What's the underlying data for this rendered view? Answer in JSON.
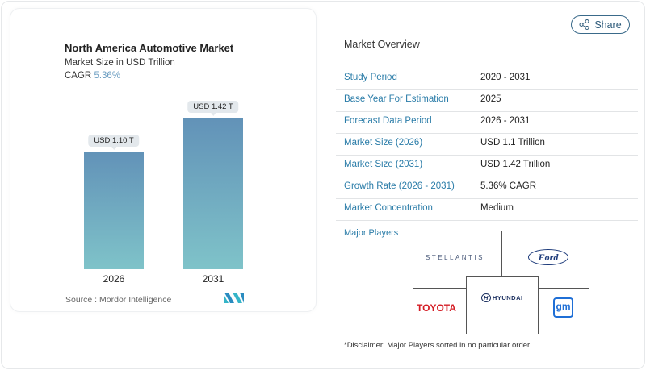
{
  "share_label": "Share",
  "chart_data": {
    "type": "bar",
    "title": "North America Automotive Market",
    "subtitle": "Market Size in USD Trillion",
    "cagr_label": "CAGR",
    "cagr_value": "5.36%",
    "categories": [
      "2026",
      "2031"
    ],
    "values": [
      1.1,
      1.42
    ],
    "data_labels": [
      "USD 1.10 T",
      "USD 1.42 T"
    ],
    "ylim": [
      0,
      1.42
    ],
    "bar_color_top": "#6292b8",
    "bar_color_bottom": "#7fc3c9",
    "reference_line": "dashed at 2026 value",
    "source": "Source :  Mordor Intelligence"
  },
  "overview": {
    "title": "Market Overview",
    "rows": [
      {
        "label": "Study Period",
        "value": "2020 - 2031"
      },
      {
        "label": "Base Year For Estimation",
        "value": "2025"
      },
      {
        "label": "Forecast Data Period",
        "value": "2026 - 2031"
      },
      {
        "label": "Market Size (2026)",
        "value": "USD 1.1 Trillion"
      },
      {
        "label": "Market Size (2031)",
        "value": "USD 1.42 Trillion"
      },
      {
        "label": "Growth Rate (2026 - 2031)",
        "value": "5.36% CAGR"
      },
      {
        "label": "Market Concentration",
        "value": "Medium"
      }
    ]
  },
  "players": {
    "title": "Major Players",
    "logos": [
      "STELLANTIS",
      "Ford",
      "HYUNDAI",
      "TOYOTA",
      "gm"
    ]
  },
  "disclaimer": "*Disclaimer: Major Players sorted in no particular order"
}
